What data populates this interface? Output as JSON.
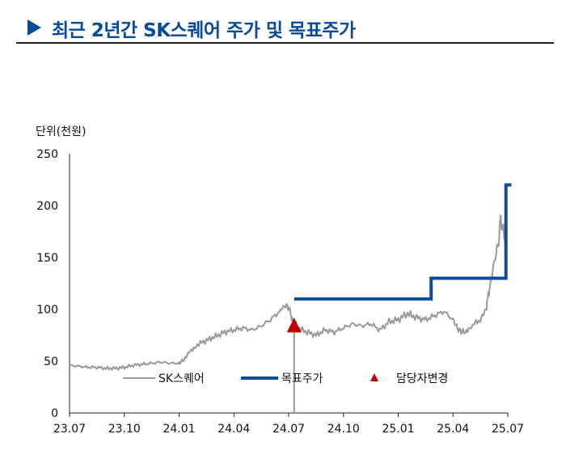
{
  "header": {
    "title": "최근 2년간 SK스퀘어 주가 및 목표주가"
  },
  "colors": {
    "title": "#0a4a9c",
    "price": "#9a9a9a",
    "target": "#0f4c9a",
    "change": "#c00000"
  },
  "chart_data": {
    "type": "line",
    "title": "최근 2년간 SK스퀘어 주가 및 목표주가",
    "unit_label": "단위(천원)",
    "xlabel": "",
    "ylabel": "",
    "ylim": [
      0,
      250
    ],
    "yticks": [
      0,
      50,
      100,
      150,
      200,
      250
    ],
    "xlim": [
      0,
      24
    ],
    "x_ticks": [
      {
        "x": 0,
        "label": "23.07"
      },
      {
        "x": 3,
        "label": "23.10"
      },
      {
        "x": 6,
        "label": "24.01"
      },
      {
        "x": 9,
        "label": "24.04"
      },
      {
        "x": 12,
        "label": "24.07"
      },
      {
        "x": 15,
        "label": "24.10"
      },
      {
        "x": 18,
        "label": "25.01"
      },
      {
        "x": 21,
        "label": "25.04"
      },
      {
        "x": 24,
        "label": "25.07"
      }
    ],
    "legend": [
      "SK스퀘어",
      "목표주가",
      "담당자변경"
    ],
    "series": [
      {
        "name": "SK스퀘어",
        "points": [
          [
            0.0,
            46
          ],
          [
            0.5,
            45
          ],
          [
            1.0,
            44
          ],
          [
            1.5,
            44
          ],
          [
            2.0,
            43
          ],
          [
            2.5,
            43
          ],
          [
            3.0,
            44
          ],
          [
            3.5,
            46
          ],
          [
            4.0,
            47
          ],
          [
            4.5,
            48
          ],
          [
            5.0,
            49
          ],
          [
            5.5,
            48
          ],
          [
            6.0,
            48
          ],
          [
            6.3,
            52
          ],
          [
            6.6,
            60
          ],
          [
            7.0,
            66
          ],
          [
            7.5,
            70
          ],
          [
            8.0,
            74
          ],
          [
            8.5,
            78
          ],
          [
            9.0,
            80
          ],
          [
            9.5,
            82
          ],
          [
            10.0,
            80
          ],
          [
            10.5,
            84
          ],
          [
            11.0,
            90
          ],
          [
            11.5,
            98
          ],
          [
            11.8,
            104
          ],
          [
            12.0,
            102
          ],
          [
            12.2,
            90
          ],
          [
            12.5,
            82
          ],
          [
            13.0,
            78
          ],
          [
            13.5,
            75
          ],
          [
            14.0,
            80
          ],
          [
            14.5,
            78
          ],
          [
            15.0,
            82
          ],
          [
            15.5,
            86
          ],
          [
            16.0,
            84
          ],
          [
            16.5,
            86
          ],
          [
            17.0,
            80
          ],
          [
            17.5,
            88
          ],
          [
            18.0,
            90
          ],
          [
            18.5,
            96
          ],
          [
            19.0,
            92
          ],
          [
            19.5,
            90
          ],
          [
            20.0,
            94
          ],
          [
            20.5,
            98
          ],
          [
            21.0,
            90
          ],
          [
            21.3,
            80
          ],
          [
            21.6,
            78
          ],
          [
            22.0,
            84
          ],
          [
            22.5,
            90
          ],
          [
            22.8,
            100
          ],
          [
            23.0,
            120
          ],
          [
            23.3,
            150
          ],
          [
            23.5,
            165
          ],
          [
            23.6,
            188
          ],
          [
            23.7,
            180
          ],
          [
            23.8,
            172
          ],
          [
            23.9,
            165
          ]
        ]
      },
      {
        "name": "목표주가",
        "points": [
          [
            12.3,
            110
          ],
          [
            19.8,
            110
          ],
          [
            19.8,
            130
          ],
          [
            23.9,
            130
          ],
          [
            23.9,
            220
          ],
          [
            24.2,
            220
          ]
        ]
      }
    ],
    "marker": {
      "name": "담당자변경",
      "x": 12.3,
      "y": 84
    }
  }
}
